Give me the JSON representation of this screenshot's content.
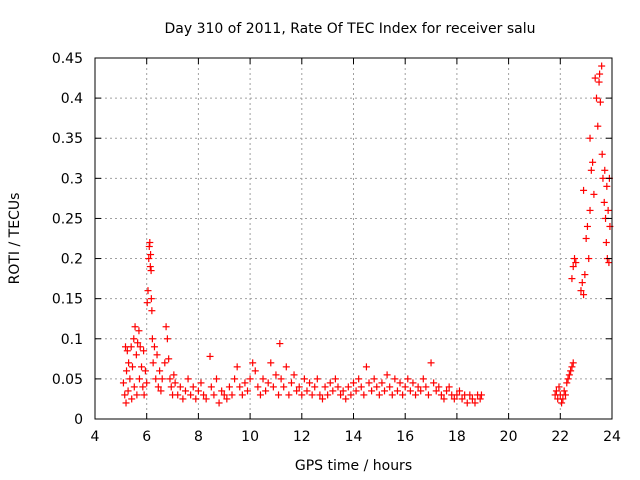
{
  "chart_data": {
    "type": "scatter",
    "title": "Day 310 of 2011, Rate Of TEC Index for receiver salu",
    "xlabel": "GPS time / hours",
    "ylabel": "ROTI / TECUs",
    "xlim": [
      4,
      24
    ],
    "ylim": [
      0,
      0.45
    ],
    "grid": true,
    "marker": "+",
    "color": "#ff0000",
    "x_ticks": [
      "4",
      "6",
      "8",
      "10",
      "12",
      "14",
      "16",
      "18",
      "20",
      "22",
      "24"
    ],
    "y_ticks": [
      "0",
      "0.05",
      "0.1",
      "0.15",
      "0.2",
      "0.25",
      "0.3",
      "0.35",
      "0.4",
      "0.45"
    ],
    "series": [
      {
        "points": [
          [
            5.1,
            0.045
          ],
          [
            5.15,
            0.03
          ],
          [
            5.18,
            0.09
          ],
          [
            5.2,
            0.02
          ],
          [
            5.22,
            0.06
          ],
          [
            5.25,
            0.085
          ],
          [
            5.28,
            0.035
          ],
          [
            5.3,
            0.07
          ],
          [
            5.35,
            0.05
          ],
          [
            5.4,
            0.09
          ],
          [
            5.42,
            0.025
          ],
          [
            5.45,
            0.065
          ],
          [
            5.5,
            0.1
          ],
          [
            5.52,
            0.04
          ],
          [
            5.55,
            0.115
          ],
          [
            5.6,
            0.08
          ],
          [
            5.62,
            0.03
          ],
          [
            5.65,
            0.095
          ],
          [
            5.7,
            0.11
          ],
          [
            5.72,
            0.05
          ],
          [
            5.75,
            0.09
          ],
          [
            5.8,
            0.065
          ],
          [
            5.85,
            0.04
          ],
          [
            5.88,
            0.085
          ],
          [
            5.9,
            0.03
          ],
          [
            5.95,
            0.06
          ],
          [
            6.0,
            0.045
          ],
          [
            6.02,
            0.145
          ],
          [
            6.05,
            0.16
          ],
          [
            6.08,
            0.2
          ],
          [
            6.1,
            0.215
          ],
          [
            6.12,
            0.22
          ],
          [
            6.14,
            0.19
          ],
          [
            6.15,
            0.205
          ],
          [
            6.17,
            0.185
          ],
          [
            6.18,
            0.15
          ],
          [
            6.2,
            0.135
          ],
          [
            6.22,
            0.1
          ],
          [
            6.25,
            0.07
          ],
          [
            6.3,
            0.09
          ],
          [
            6.35,
            0.05
          ],
          [
            6.4,
            0.08
          ],
          [
            6.45,
            0.04
          ],
          [
            6.5,
            0.06
          ],
          [
            6.55,
            0.035
          ],
          [
            6.6,
            0.05
          ],
          [
            6.7,
            0.07
          ],
          [
            6.75,
            0.115
          ],
          [
            6.8,
            0.1
          ],
          [
            6.85,
            0.075
          ],
          [
            6.9,
            0.05
          ],
          [
            6.95,
            0.04
          ],
          [
            7.0,
            0.03
          ],
          [
            7.05,
            0.055
          ],
          [
            7.1,
            0.045
          ],
          [
            7.2,
            0.03
          ],
          [
            7.3,
            0.04
          ],
          [
            7.4,
            0.025
          ],
          [
            7.5,
            0.035
          ],
          [
            7.6,
            0.05
          ],
          [
            7.7,
            0.03
          ],
          [
            7.8,
            0.04
          ],
          [
            7.9,
            0.025
          ],
          [
            8.0,
            0.035
          ],
          [
            8.1,
            0.045
          ],
          [
            8.2,
            0.03
          ],
          [
            8.3,
            0.025
          ],
          [
            8.45,
            0.078
          ],
          [
            8.5,
            0.04
          ],
          [
            8.6,
            0.03
          ],
          [
            8.7,
            0.05
          ],
          [
            8.8,
            0.02
          ],
          [
            8.9,
            0.035
          ],
          [
            9.0,
            0.03
          ],
          [
            9.1,
            0.025
          ],
          [
            9.2,
            0.04
          ],
          [
            9.3,
            0.03
          ],
          [
            9.4,
            0.05
          ],
          [
            9.5,
            0.065
          ],
          [
            9.6,
            0.04
          ],
          [
            9.7,
            0.03
          ],
          [
            9.8,
            0.045
          ],
          [
            9.9,
            0.035
          ],
          [
            10.0,
            0.05
          ],
          [
            10.1,
            0.07
          ],
          [
            10.2,
            0.06
          ],
          [
            10.3,
            0.04
          ],
          [
            10.4,
            0.03
          ],
          [
            10.5,
            0.05
          ],
          [
            10.6,
            0.035
          ],
          [
            10.7,
            0.045
          ],
          [
            10.8,
            0.07
          ],
          [
            10.9,
            0.04
          ],
          [
            11.0,
            0.055
          ],
          [
            11.1,
            0.03
          ],
          [
            11.15,
            0.094
          ],
          [
            11.2,
            0.05
          ],
          [
            11.3,
            0.04
          ],
          [
            11.4,
            0.065
          ],
          [
            11.5,
            0.03
          ],
          [
            11.6,
            0.045
          ],
          [
            11.7,
            0.055
          ],
          [
            11.8,
            0.035
          ],
          [
            11.9,
            0.04
          ],
          [
            12.0,
            0.03
          ],
          [
            12.1,
            0.05
          ],
          [
            12.2,
            0.035
          ],
          [
            12.3,
            0.045
          ],
          [
            12.4,
            0.03
          ],
          [
            12.5,
            0.04
          ],
          [
            12.6,
            0.05
          ],
          [
            12.7,
            0.03
          ],
          [
            12.8,
            0.025
          ],
          [
            12.9,
            0.04
          ],
          [
            13.0,
            0.03
          ],
          [
            13.1,
            0.045
          ],
          [
            13.2,
            0.035
          ],
          [
            13.3,
            0.05
          ],
          [
            13.4,
            0.04
          ],
          [
            13.5,
            0.03
          ],
          [
            13.6,
            0.035
          ],
          [
            13.7,
            0.025
          ],
          [
            13.8,
            0.04
          ],
          [
            13.9,
            0.03
          ],
          [
            14.0,
            0.045
          ],
          [
            14.1,
            0.035
          ],
          [
            14.2,
            0.05
          ],
          [
            14.3,
            0.04
          ],
          [
            14.4,
            0.03
          ],
          [
            14.5,
            0.065
          ],
          [
            14.6,
            0.045
          ],
          [
            14.7,
            0.035
          ],
          [
            14.8,
            0.05
          ],
          [
            14.9,
            0.04
          ],
          [
            15.0,
            0.03
          ],
          [
            15.1,
            0.045
          ],
          [
            15.2,
            0.035
          ],
          [
            15.3,
            0.055
          ],
          [
            15.4,
            0.04
          ],
          [
            15.5,
            0.03
          ],
          [
            15.6,
            0.05
          ],
          [
            15.7,
            0.035
          ],
          [
            15.8,
            0.045
          ],
          [
            15.9,
            0.03
          ],
          [
            16.0,
            0.04
          ],
          [
            16.1,
            0.05
          ],
          [
            16.2,
            0.035
          ],
          [
            16.3,
            0.045
          ],
          [
            16.4,
            0.03
          ],
          [
            16.5,
            0.04
          ],
          [
            16.6,
            0.035
          ],
          [
            16.7,
            0.05
          ],
          [
            16.8,
            0.04
          ],
          [
            16.9,
            0.03
          ],
          [
            17.0,
            0.07
          ],
          [
            17.1,
            0.045
          ],
          [
            17.2,
            0.035
          ],
          [
            17.3,
            0.04
          ],
          [
            17.4,
            0.03
          ],
          [
            17.5,
            0.025
          ],
          [
            17.6,
            0.035
          ],
          [
            17.7,
            0.04
          ],
          [
            17.8,
            0.03
          ],
          [
            17.9,
            0.025
          ],
          [
            18.0,
            0.03
          ],
          [
            18.1,
            0.035
          ],
          [
            18.2,
            0.025
          ],
          [
            18.3,
            0.03
          ],
          [
            18.4,
            0.02
          ],
          [
            18.5,
            0.03
          ],
          [
            18.6,
            0.025
          ],
          [
            18.7,
            0.02
          ],
          [
            18.8,
            0.03
          ],
          [
            18.9,
            0.025
          ],
          [
            18.95,
            0.03
          ],
          [
            21.8,
            0.03
          ],
          [
            21.85,
            0.035
          ],
          [
            21.9,
            0.025
          ],
          [
            21.95,
            0.04
          ],
          [
            22.0,
            0.03
          ],
          [
            22.05,
            0.02
          ],
          [
            22.1,
            0.025
          ],
          [
            22.15,
            0.035
          ],
          [
            22.2,
            0.03
          ],
          [
            22.25,
            0.045
          ],
          [
            22.3,
            0.05
          ],
          [
            22.35,
            0.055
          ],
          [
            22.4,
            0.06
          ],
          [
            22.45,
            0.065
          ],
          [
            22.5,
            0.07
          ],
          [
            22.45,
            0.175
          ],
          [
            22.5,
            0.19
          ],
          [
            22.55,
            0.2
          ],
          [
            22.6,
            0.195
          ],
          [
            22.8,
            0.16
          ],
          [
            22.85,
            0.17
          ],
          [
            22.9,
            0.155
          ],
          [
            22.95,
            0.18
          ],
          [
            22.9,
            0.285
          ],
          [
            23.0,
            0.225
          ],
          [
            23.05,
            0.24
          ],
          [
            23.1,
            0.2
          ],
          [
            23.15,
            0.26
          ],
          [
            23.15,
            0.35
          ],
          [
            23.2,
            0.31
          ],
          [
            23.25,
            0.32
          ],
          [
            23.3,
            0.28
          ],
          [
            23.35,
            0.425
          ],
          [
            23.4,
            0.4
          ],
          [
            23.45,
            0.365
          ],
          [
            23.5,
            0.42
          ],
          [
            23.52,
            0.43
          ],
          [
            23.55,
            0.395
          ],
          [
            23.6,
            0.44
          ],
          [
            23.62,
            0.33
          ],
          [
            23.65,
            0.3
          ],
          [
            23.7,
            0.27
          ],
          [
            23.72,
            0.31
          ],
          [
            23.75,
            0.25
          ],
          [
            23.78,
            0.22
          ],
          [
            23.8,
            0.29
          ],
          [
            23.82,
            0.2
          ],
          [
            23.85,
            0.26
          ],
          [
            23.88,
            0.195
          ],
          [
            23.9,
            0.3
          ],
          [
            23.92,
            0.24
          ]
        ]
      }
    ]
  }
}
